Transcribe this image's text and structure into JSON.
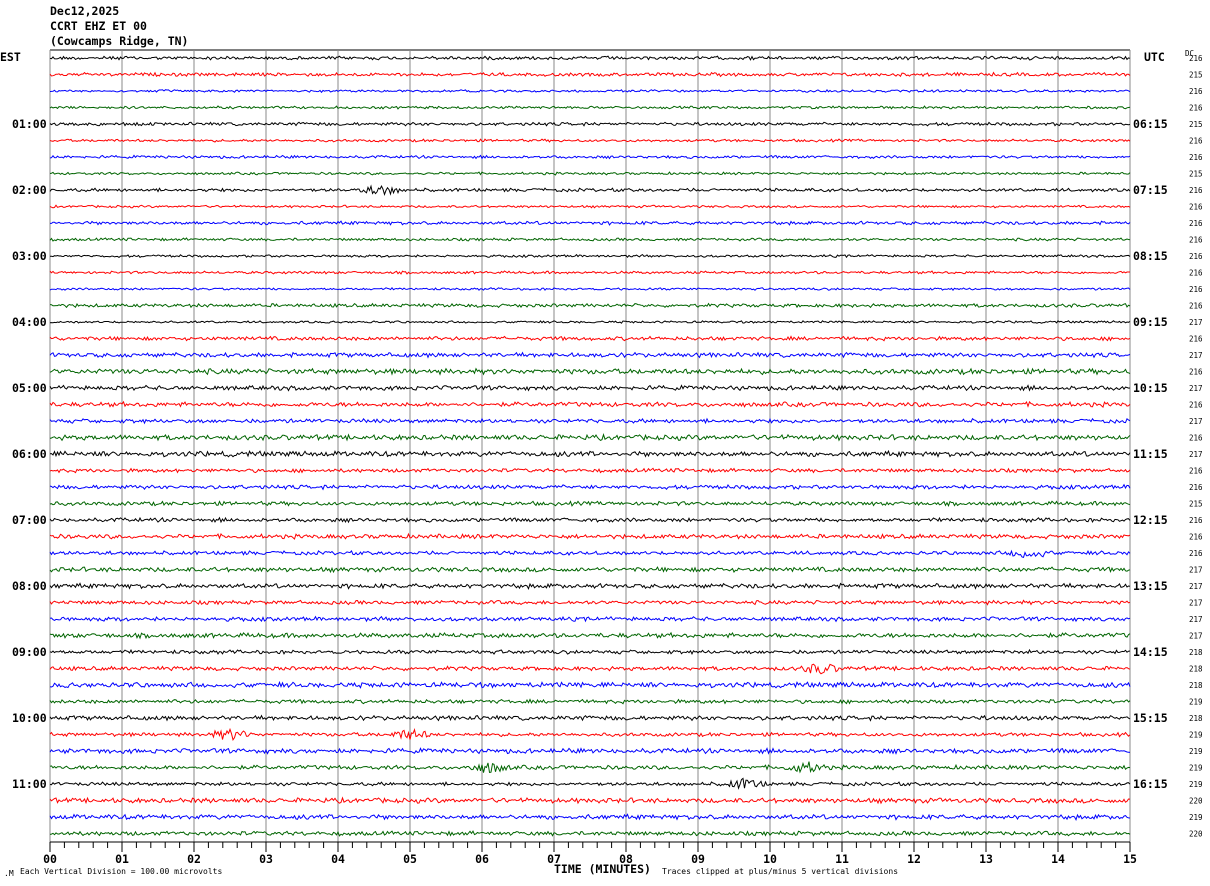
{
  "header": {
    "date": "Dec12,2025",
    "station": "CCRT EHZ ET 00",
    "location": "(Cowcamps Ridge, TN)"
  },
  "left_axis_title": "EST",
  "right_axis_title": "UTC",
  "dc_title": "DC",
  "footer": {
    "scale_note": "Each Vertical Division =  100.00 microvolts",
    "xlabel": "TIME (MINUTES)",
    "clip_note": "Traces clipped at plus/minus 5 vertical divisions"
  },
  "chart_data": {
    "type": "line",
    "subtype": "helicorder",
    "xlabel": "TIME (MINUTES)",
    "xlim": [
      0,
      15
    ],
    "x_ticks": [
      "00",
      "01",
      "02",
      "03",
      "04",
      "05",
      "06",
      "07",
      "08",
      "09",
      "10",
      "11",
      "12",
      "13",
      "14",
      "15"
    ],
    "grid": "vertical lines every minute",
    "trace_colors": [
      "#000000",
      "#ff0000",
      "#0000ff",
      "#006400"
    ],
    "rows_per_hour": 4,
    "est_labels": [
      "",
      "01:00",
      "02:00",
      "03:00",
      "04:00",
      "05:00",
      "06:00",
      "07:00",
      "08:00",
      "09:00",
      "10:00",
      "11:00"
    ],
    "utc_labels": [
      "",
      "06:15",
      "07:15",
      "08:15",
      "09:15",
      "10:15",
      "11:15",
      "12:15",
      "13:15",
      "14:15",
      "15:15",
      "16:15"
    ],
    "dc_values": [
      216,
      215,
      216,
      216,
      215,
      216,
      216,
      215,
      216,
      216,
      216,
      216,
      216,
      216,
      216,
      216,
      217,
      216,
      217,
      216,
      217,
      216,
      217,
      216,
      217,
      216,
      216,
      215,
      216,
      216,
      216,
      217,
      217,
      217,
      217,
      217,
      218,
      218,
      218,
      219,
      218,
      219,
      219,
      219,
      219,
      220,
      219,
      220
    ],
    "notable_signals": [
      {
        "row": 8,
        "minute": 4.6
      },
      {
        "row": 41,
        "minute": 2.5
      },
      {
        "row": 41,
        "minute": 5.0
      },
      {
        "row": 43,
        "minute": 6.1
      },
      {
        "row": 43,
        "minute": 10.5
      },
      {
        "row": 44,
        "minute": 9.65
      },
      {
        "row": 30,
        "minute": 13.6
      },
      {
        "row": 37,
        "minute": 10.7
      }
    ]
  }
}
